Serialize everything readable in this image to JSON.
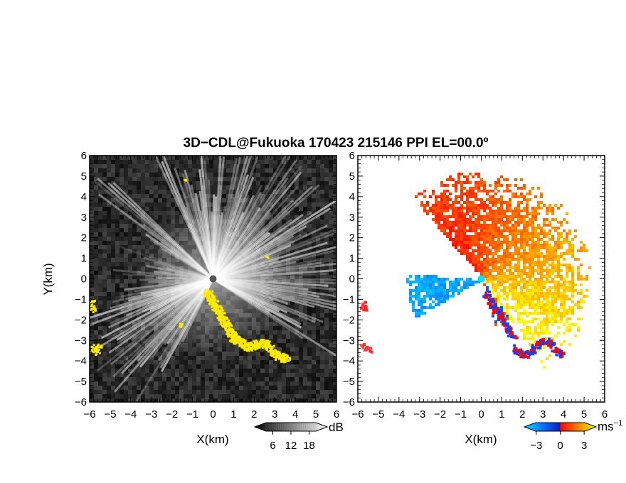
{
  "chart_data": [
    {
      "type": "heatmap",
      "panel": "left",
      "title": "3D−CDL@Fukuoka 170423 215146 PPI EL=00.0º",
      "xlabel": "X(km)",
      "ylabel": "Y(km)",
      "xlim": [
        -6,
        6
      ],
      "ylim": [
        -6,
        6
      ],
      "x_ticks": [
        "−6",
        "−5",
        "−4",
        "−3",
        "−2",
        "−1",
        "0",
        "1",
        "2",
        "3",
        "4",
        "5",
        "6"
      ],
      "y_ticks": [
        "6",
        "5",
        "4",
        "3",
        "2",
        "1",
        "0",
        "−1",
        "−2",
        "−3",
        "−4",
        "−5",
        "−6"
      ],
      "colorbar": {
        "unit": "dB",
        "ticks": [
          "6",
          "12",
          "18"
        ],
        "range": [
          0,
          24
        ],
        "colors": [
          "#000000",
          "#ffffff"
        ],
        "overlay_color": "#ffea00"
      }
    },
    {
      "type": "heatmap",
      "panel": "right",
      "xlabel": "X(km)",
      "xlim": [
        -6,
        6
      ],
      "ylim": [
        -6,
        6
      ],
      "x_ticks": [
        "−6",
        "−5",
        "−4",
        "−3",
        "−2",
        "−1",
        "0",
        "1",
        "2",
        "3",
        "4",
        "5",
        "6"
      ],
      "y_ticks": [
        "6",
        "5",
        "4",
        "3",
        "2",
        "1",
        "0",
        "−1",
        "−2",
        "−3",
        "−4",
        "−5",
        "−6"
      ],
      "colorbar": {
        "unit": "ms",
        "unit_exp": "−1",
        "ticks": [
          "−3",
          "0",
          "3"
        ],
        "range": [
          -4.5,
          4.5
        ],
        "colors": [
          "#00e0ff",
          "#1060ff",
          "#0020c0",
          "#ff0000",
          "#ff8000",
          "#ffff00"
        ]
      }
    }
  ]
}
